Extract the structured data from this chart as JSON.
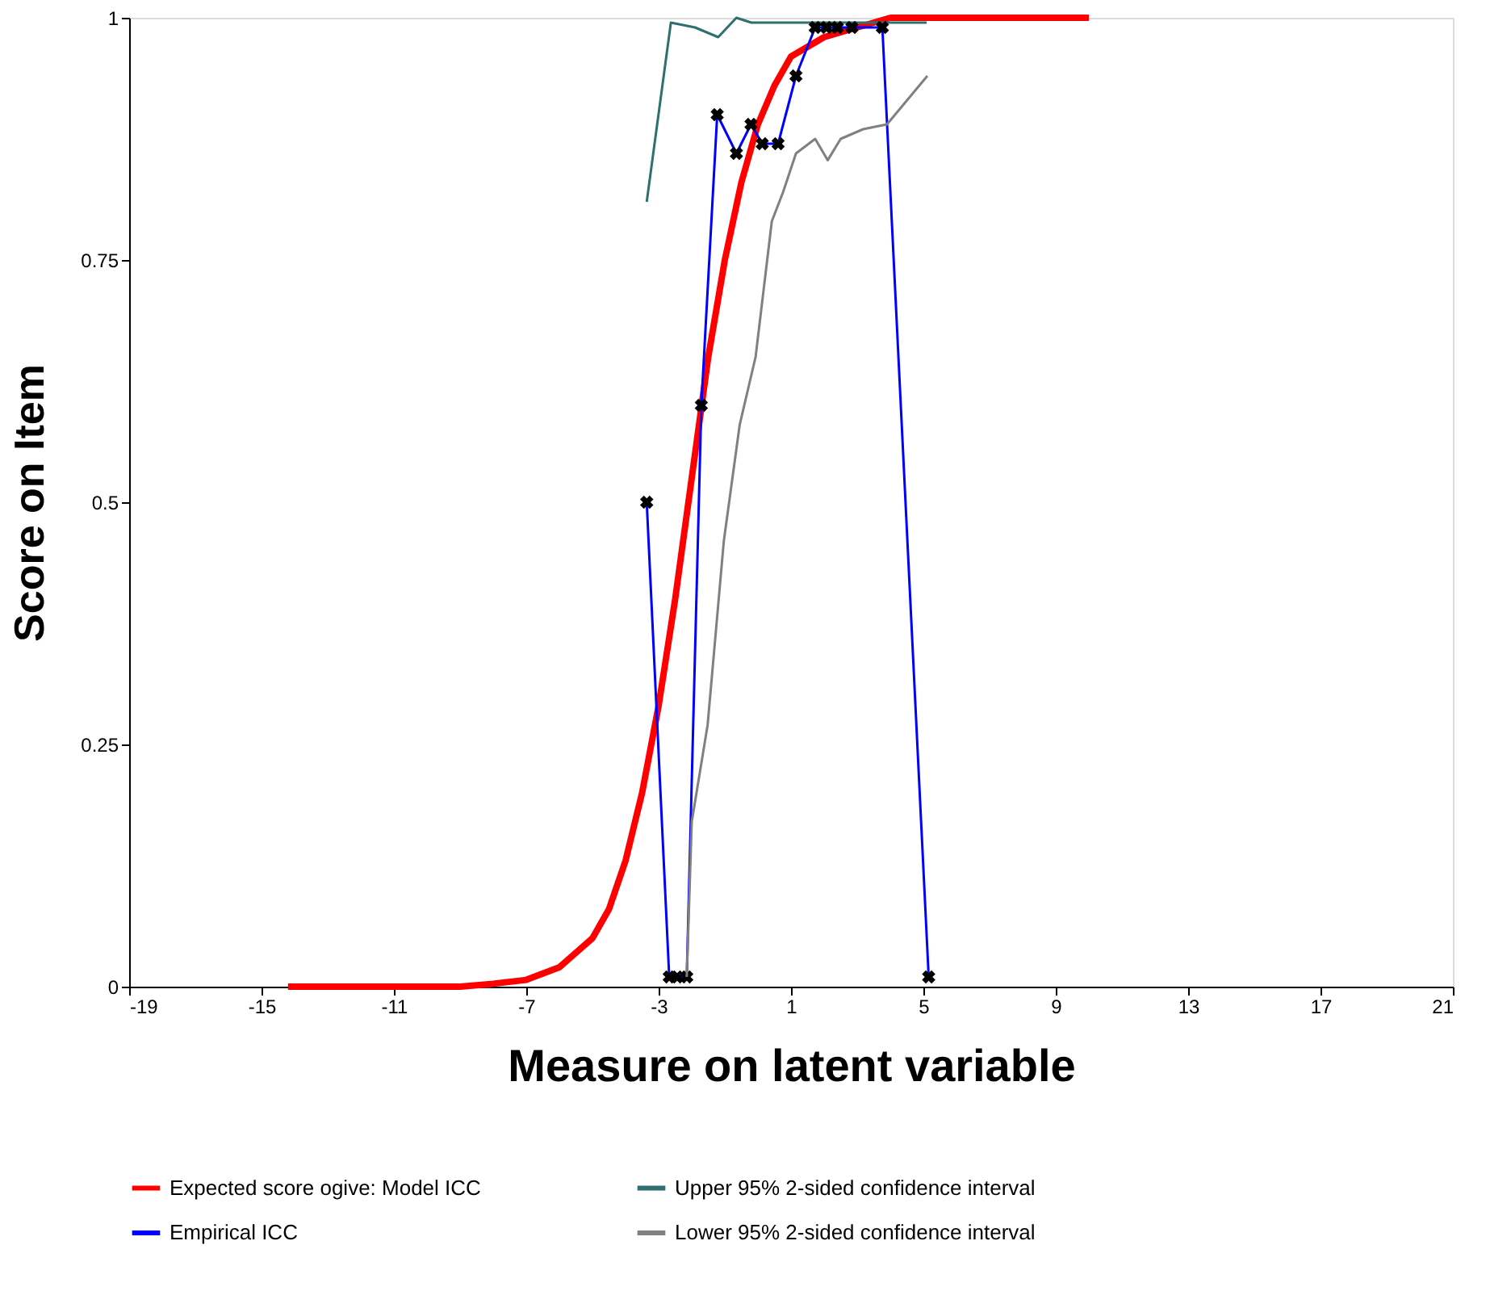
{
  "chart_data": {
    "type": "line",
    "xlabel": "Measure on latent variable",
    "ylabel": "Score on Item",
    "xlim": [
      -19,
      21
    ],
    "xticks": [
      -19,
      -15,
      -11,
      -7,
      -3,
      1,
      5,
      9,
      13,
      17,
      21
    ],
    "ylim": [
      0,
      1
    ],
    "yticks": [
      0,
      0.25,
      0.5,
      0.75,
      1
    ],
    "grid": false,
    "legend": "bottom",
    "series": [
      {
        "name": "Expected score ogive: Model ICC",
        "color": "#ff0000",
        "marker": "none",
        "x": [
          -14.2,
          -11,
          -9,
          -8,
          -7,
          -6,
          -5,
          -4.5,
          -4,
          -3.5,
          -3,
          -2.5,
          -2.1,
          -1.5,
          -1,
          -0.5,
          0,
          0.5,
          1,
          1.5,
          2,
          3,
          4,
          6,
          10
        ],
        "values": [
          0,
          0,
          0,
          0.003,
          0.007,
          0.02,
          0.05,
          0.08,
          0.13,
          0.2,
          0.29,
          0.4,
          0.5,
          0.65,
          0.75,
          0.83,
          0.89,
          0.93,
          0.96,
          0.97,
          0.98,
          0.99,
          1,
          1,
          1
        ]
      },
      {
        "name": "Upper 95% 2-sided confidence interval",
        "color": "#2f6f6f",
        "marker": "none",
        "x": [
          -3.36,
          -2.63,
          -1.9,
          -1.2,
          -0.65,
          -0.2,
          5.1
        ],
        "values": [
          0.81,
          0.995,
          0.99,
          0.98,
          1,
          0.995,
          0.995
        ]
      },
      {
        "name": "Empirical ICC",
        "color": "#0000ff",
        "marker": "cross",
        "x": [
          -3.36,
          -2.68,
          -2.44,
          -2.15,
          -1.71,
          -1.23,
          -0.65,
          -0.21,
          0.13,
          0.61,
          1.15,
          1.73,
          2.07,
          2.4,
          2.84,
          3.76,
          5.16
        ],
        "values": [
          0.5,
          0.01,
          0.01,
          0.01,
          0.6,
          0.9,
          0.86,
          0.89,
          0.87,
          0.87,
          0.94,
          0.99,
          0.99,
          0.99,
          0.99,
          0.99,
          0.01
        ]
      },
      {
        "name": "Lower 95% 2-sided confidence interval",
        "color": "#808080",
        "marker": "none",
        "x": [
          -2.15,
          -2.0,
          -1.52,
          -1.03,
          -0.55,
          -0.07,
          0.42,
          0.76,
          1.15,
          1.73,
          2.11,
          2.5,
          3.18,
          3.9,
          5.12
        ],
        "values": [
          0.01,
          0.17,
          0.27,
          0.46,
          0.58,
          0.65,
          0.79,
          0.82,
          0.86,
          0.875,
          0.853,
          0.875,
          0.885,
          0.89,
          0.94
        ]
      }
    ]
  }
}
